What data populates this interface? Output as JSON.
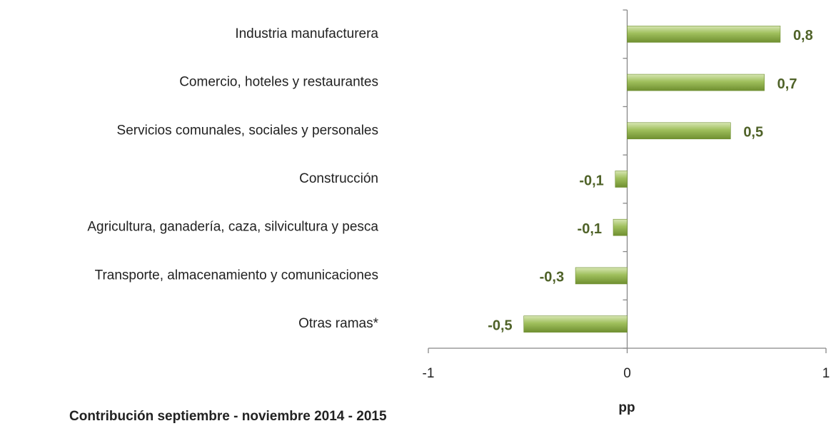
{
  "chart_data": {
    "type": "barh",
    "categories": [
      "Industria manufacturera",
      "Comercio, hoteles y restaurantes",
      "Servicios comunales, sociales y personales",
      "Construcción",
      "Agricultura, ganadería, caza, silvicultura y pesca",
      "Transporte, almacenamiento y comunicaciones",
      "Otras ramas*"
    ],
    "values": [
      0.77,
      0.69,
      0.52,
      -0.06,
      -0.07,
      -0.26,
      -0.52
    ],
    "value_labels": [
      "0,8",
      "0,7",
      "0,5",
      "-0,1",
      "-0,1",
      "-0,3",
      "-0,5"
    ],
    "color": "#8aab44",
    "xlim": [
      -1,
      1
    ],
    "xticks": [
      -1,
      0,
      1
    ],
    "xlabel": "pp",
    "annotation": "Contribución  septiembre - noviembre 2014 - 2015"
  }
}
